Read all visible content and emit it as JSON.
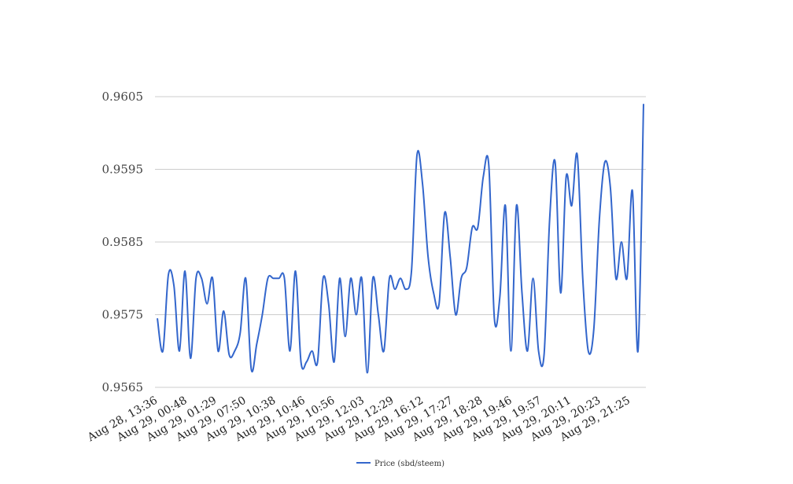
{
  "chart_data": {
    "type": "line",
    "title": "",
    "xlabel": "",
    "ylabel": "",
    "ylim": [
      0.9565,
      0.9605
    ],
    "y_ticks": [
      "0.9565",
      "0.9575",
      "0.9585",
      "0.9595",
      "0.9605"
    ],
    "x_tick_labels": [
      "Aug 28, 13:36",
      "Aug 29, 00:48",
      "Aug 29, 01:29",
      "Aug 29, 07:50",
      "Aug 29, 10:38",
      "Aug 29, 10:46",
      "Aug 29, 10:56",
      "Aug 29, 12:03",
      "Aug 29, 12:29",
      "Aug 29, 16:12",
      "Aug 29, 17:27",
      "Aug 29, 18:28",
      "Aug 29, 19:46",
      "Aug 29, 19:57",
      "Aug 29, 20:11",
      "Aug 29, 20:23",
      "Aug 29, 21:25"
    ],
    "grid": true,
    "legend_position": "bottom",
    "series": [
      {
        "name": "Price (sbd/steem)",
        "color": "#3366cc",
        "values": [
          0.95745,
          0.957,
          0.95805,
          0.9579,
          0.957,
          0.9581,
          0.9569,
          0.958,
          0.958,
          0.95765,
          0.958,
          0.957,
          0.95755,
          0.95695,
          0.957,
          0.95725,
          0.958,
          0.95675,
          0.9571,
          0.9575,
          0.958,
          0.958,
          0.958,
          0.958,
          0.957,
          0.9581,
          0.95685,
          0.95685,
          0.957,
          0.95685,
          0.958,
          0.95765,
          0.95685,
          0.958,
          0.9572,
          0.958,
          0.9575,
          0.958,
          0.9567,
          0.958,
          0.9575,
          0.957,
          0.958,
          0.95785,
          0.958,
          0.95785,
          0.9581,
          0.9597,
          0.9593,
          0.9583,
          0.9578,
          0.95765,
          0.9589,
          0.9583,
          0.9575,
          0.958,
          0.95815,
          0.9587,
          0.9587,
          0.9594,
          0.95955,
          0.95745,
          0.95775,
          0.959,
          0.957,
          0.959,
          0.9578,
          0.957,
          0.958,
          0.957,
          0.95695,
          0.9588,
          0.9596,
          0.9578,
          0.9594,
          0.959,
          0.9597,
          0.958,
          0.957,
          0.9573,
          0.9588,
          0.9596,
          0.95925,
          0.958,
          0.9585,
          0.958,
          0.9592,
          0.957,
          0.9604
        ]
      }
    ]
  }
}
